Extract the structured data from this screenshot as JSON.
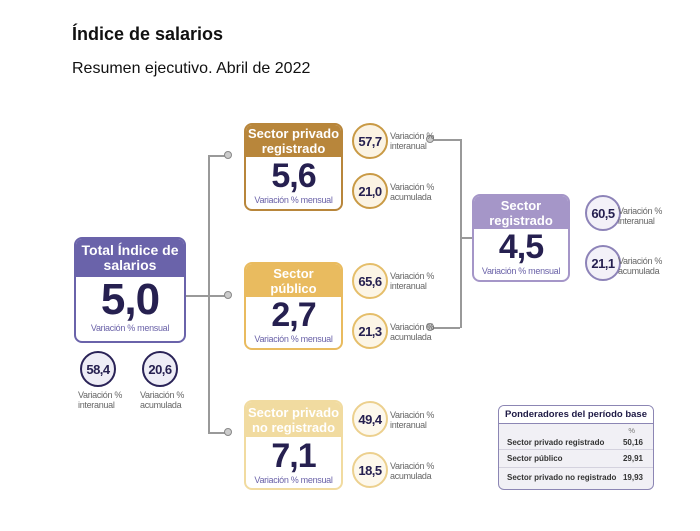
{
  "title": "Índice de salarios",
  "subtitle": "Resumen ejecutivo. Abril de 2022",
  "total": {
    "header": "Total Índice de salarios",
    "value": "5,0",
    "sub": "Variación % mensual",
    "interanual": "58,4",
    "acumulada": "20,6",
    "interanual_label": "Variación % interanual",
    "acumulada_label": "Variación % acumulada",
    "color": "#6a63aa"
  },
  "privado_registrado": {
    "header": "Sector privado registrado",
    "value": "5,6",
    "sub": "Variación % mensual",
    "interanual": "57,7",
    "acumulada": "21,0",
    "interanual_label": "Variación % interanual",
    "acumulada_label": "Variación % acumulada",
    "color": "#b8863b"
  },
  "publico": {
    "header": "Sector público",
    "value": "2,7",
    "sub": "Variación % mensual",
    "interanual": "65,6",
    "acumulada": "21,3",
    "interanual_label": "Variación % interanual",
    "acumulada_label": "Variación % acumulada",
    "color": "#e9bb5f"
  },
  "no_registrado": {
    "header": "Sector privado no registrado",
    "value": "7,1",
    "sub": "Variación % mensual",
    "interanual": "49,4",
    "acumulada": "18,5",
    "interanual_label": "Variación % interanual",
    "acumulada_label": "Variación % acumulada",
    "color": "#f1dba0"
  },
  "registrado": {
    "header": "Sector registrado",
    "value": "4,5",
    "sub": "Variación % mensual",
    "interanual": "60,5",
    "acumulada": "21,1",
    "interanual_label": "Variación % interanual",
    "acumulada_label": "Variación % acumulada",
    "color": "#a596c8"
  },
  "ponderadores": {
    "title": "Ponderadores del período base",
    "unit": "%",
    "rows": [
      {
        "label": "Sector privado registrado",
        "value": "50,16"
      },
      {
        "label": "Sector público",
        "value": "29,91"
      },
      {
        "label": "Sector privado no registrado",
        "value": "19,93"
      }
    ]
  }
}
